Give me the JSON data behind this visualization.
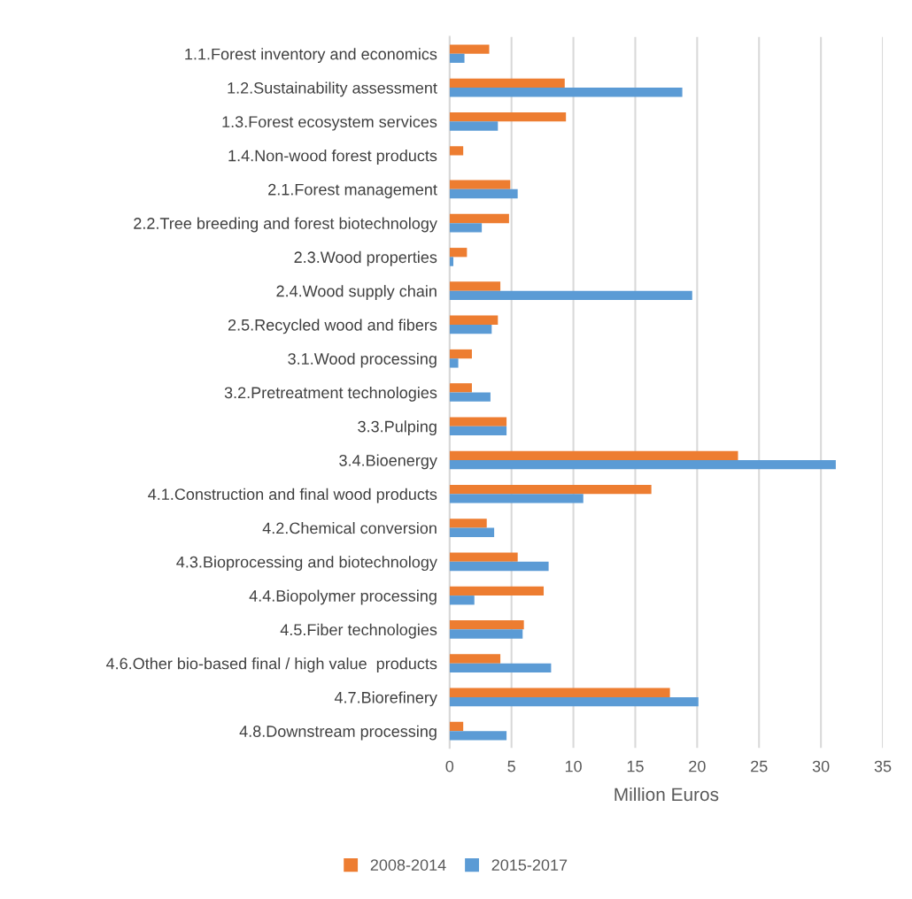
{
  "chart_data": {
    "type": "bar",
    "orientation": "horizontal",
    "xlabel": "Million Euros",
    "categories": [
      "1.1.Forest inventory and economics",
      "1.2.Sustainability assessment",
      "1.3.Forest ecosystem services",
      "1.4.Non-wood forest products",
      "2.1.Forest management",
      "2.2.Tree breeding and forest biotechnology",
      "2.3.Wood properties",
      "2.4.Wood supply chain",
      "2.5.Recycled wood and fibers",
      "3.1.Wood processing",
      "3.2.Pretreatment technologies",
      "3.3.Pulping",
      "3.4.Bioenergy",
      "4.1.Construction and final wood products",
      "4.2.Chemical conversion",
      "4.3.Bioprocessing and biotechnology",
      "4.4.Biopolymer processing",
      "4.5.Fiber technologies",
      "4.6.Other bio-based final / high value  products",
      "4.7.Biorefinery",
      "4.8.Downstream processing"
    ],
    "series": [
      {
        "name": "2008-2014",
        "color": "#ed7d31",
        "values": [
          3.2,
          9.3,
          9.4,
          1.1,
          4.9,
          4.8,
          1.4,
          4.1,
          3.9,
          1.8,
          1.8,
          4.6,
          23.3,
          16.3,
          3.0,
          5.5,
          7.6,
          6.0,
          4.1,
          17.8,
          1.1
        ]
      },
      {
        "name": "2015-2017",
        "color": "#5b9bd5",
        "values": [
          1.2,
          18.8,
          3.9,
          null,
          5.5,
          2.6,
          0.3,
          19.6,
          3.4,
          0.7,
          3.3,
          4.6,
          31.2,
          10.8,
          3.6,
          8.0,
          2.0,
          5.9,
          8.2,
          20.1,
          4.6
        ]
      }
    ],
    "xlim": [
      0,
      35
    ],
    "xticks": [
      0,
      5,
      10,
      15,
      20,
      25,
      30,
      35
    ],
    "grid": "x",
    "legend": "bottom"
  }
}
